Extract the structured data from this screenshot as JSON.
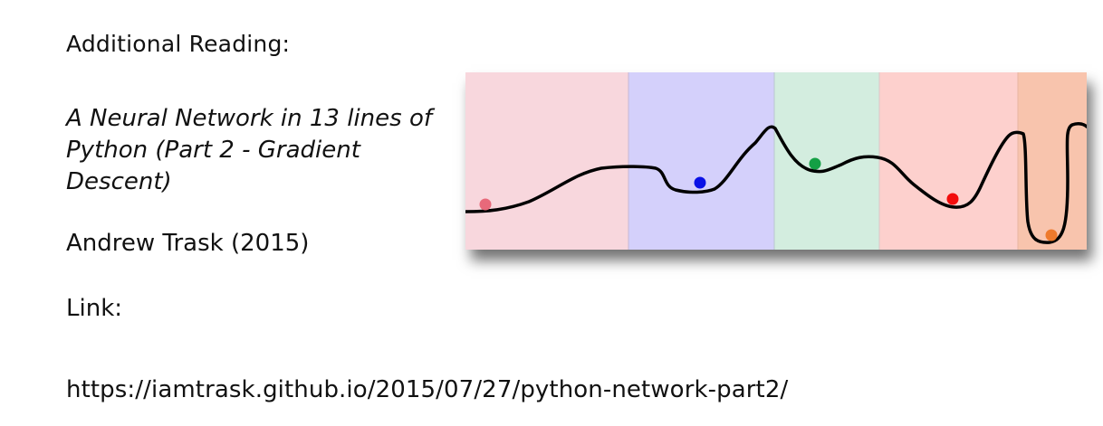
{
  "heading": "Additional Reading:",
  "reference": {
    "title": "A Neural Network in 13 lines of Python (Part 2 - Gradient Descent)",
    "author_year": "Andrew Trask (2015)",
    "link_label": "Link:",
    "url": "https://iamtrask.github.io/2015/07/27/python-network-part2/"
  },
  "figure": {
    "description_icon": "loss-landscape-illustration",
    "bands": [
      {
        "color": "#f8d7dd"
      },
      {
        "color": "#d4d0fb"
      },
      {
        "color": "#d3eddf"
      },
      {
        "color": "#fdd0cd"
      },
      {
        "color": "#f8c4ad"
      }
    ],
    "balls": [
      {
        "color": "#e8697a"
      },
      {
        "color": "#0a11e6"
      },
      {
        "color": "#14a045"
      },
      {
        "color": "#f20c0c"
      },
      {
        "color": "#ee7a2c"
      }
    ],
    "curve_color": "#000000"
  }
}
